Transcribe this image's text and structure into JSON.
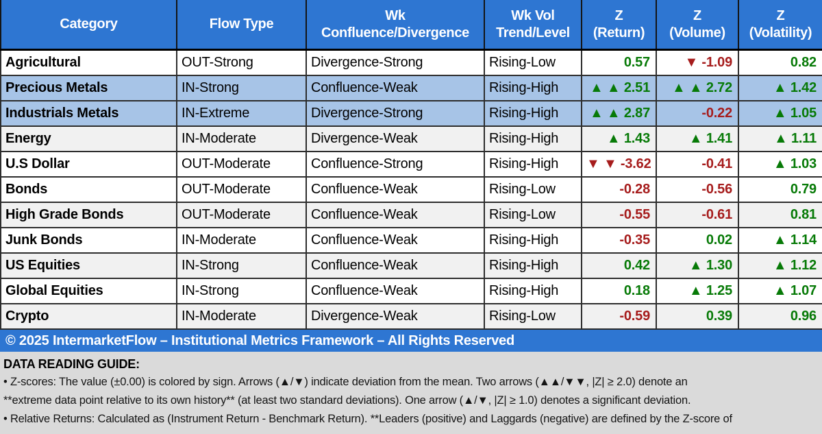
{
  "colors": {
    "header_bg": "#2E76D2",
    "highlight_bg": "#A7C4E7",
    "stripe_bg": "#F1F1F1",
    "positive_text": "#077A07",
    "negative_text": "#A61C1C",
    "footer_bg": "#2E76D2",
    "guide_bg": "#DADADA"
  },
  "table": {
    "header": [
      [
        "Category",
        ""
      ],
      [
        "Flow Type",
        ""
      ],
      [
        "Wk",
        "Confluence/Divergence"
      ],
      [
        "Wk Vol",
        "Trend/Level"
      ],
      [
        "Z",
        "(Return)"
      ],
      [
        "Z",
        "(Volume)"
      ],
      [
        "Z",
        "(Volatility)"
      ]
    ],
    "rows": [
      {
        "category": "Agricultural",
        "flow": "OUT-Strong",
        "confluence": "Divergence-Strong",
        "vol_trend": "Rising-Low",
        "bg": "white",
        "z": [
          {
            "text": "0.57",
            "tone": "pos"
          },
          {
            "text": "▼ -1.09",
            "tone": "neg"
          },
          {
            "text": "0.82",
            "tone": "pos"
          }
        ]
      },
      {
        "category": "Precious Metals",
        "flow": "IN-Strong",
        "confluence": "Confluence-Weak",
        "vol_trend": "Rising-High",
        "bg": "highlight",
        "z": [
          {
            "text": "▲ ▲ 2.51",
            "tone": "pos"
          },
          {
            "text": "▲ ▲ 2.72",
            "tone": "pos"
          },
          {
            "text": "▲ 1.42",
            "tone": "pos"
          }
        ]
      },
      {
        "category": "Industrials Metals",
        "flow": "IN-Extreme",
        "confluence": "Divergence-Strong",
        "vol_trend": "Rising-High",
        "bg": "highlight",
        "z": [
          {
            "text": "▲ ▲ 2.87",
            "tone": "pos"
          },
          {
            "text": "-0.22",
            "tone": "neg"
          },
          {
            "text": "▲ 1.05",
            "tone": "pos"
          }
        ]
      },
      {
        "category": "Energy",
        "flow": "IN-Moderate",
        "confluence": "Divergence-Weak",
        "vol_trend": "Rising-High",
        "bg": "stripe",
        "z": [
          {
            "text": "▲ 1.43",
            "tone": "pos"
          },
          {
            "text": "▲ 1.41",
            "tone": "pos"
          },
          {
            "text": "▲ 1.11",
            "tone": "pos"
          }
        ]
      },
      {
        "category": "U.S Dollar",
        "flow": "OUT-Moderate",
        "confluence": "Confluence-Strong",
        "vol_trend": "Rising-High",
        "bg": "white",
        "z": [
          {
            "text": "▼ ▼ -3.62",
            "tone": "neg"
          },
          {
            "text": "-0.41",
            "tone": "neg"
          },
          {
            "text": "▲ 1.03",
            "tone": "pos"
          }
        ]
      },
      {
        "category": "Bonds",
        "flow": "OUT-Moderate",
        "confluence": "Confluence-Weak",
        "vol_trend": "Rising-Low",
        "bg": "white",
        "z": [
          {
            "text": "-0.28",
            "tone": "neg"
          },
          {
            "text": "-0.56",
            "tone": "neg"
          },
          {
            "text": "0.79",
            "tone": "pos"
          }
        ]
      },
      {
        "category": "High Grade Bonds",
        "flow": "OUT-Moderate",
        "confluence": "Confluence-Weak",
        "vol_trend": "Rising-Low",
        "bg": "stripe",
        "z": [
          {
            "text": "-0.55",
            "tone": "neg"
          },
          {
            "text": "-0.61",
            "tone": "neg"
          },
          {
            "text": "0.81",
            "tone": "pos"
          }
        ]
      },
      {
        "category": "Junk Bonds",
        "flow": "IN-Moderate",
        "confluence": "Confluence-Weak",
        "vol_trend": "Rising-High",
        "bg": "white",
        "z": [
          {
            "text": "-0.35",
            "tone": "neg"
          },
          {
            "text": "0.02",
            "tone": "pos"
          },
          {
            "text": "▲ 1.14",
            "tone": "pos"
          }
        ]
      },
      {
        "category": "US Equities",
        "flow": "IN-Strong",
        "confluence": "Confluence-Weak",
        "vol_trend": "Rising-High",
        "bg": "stripe",
        "z": [
          {
            "text": "0.42",
            "tone": "pos"
          },
          {
            "text": "▲ 1.30",
            "tone": "pos"
          },
          {
            "text": "▲ 1.12",
            "tone": "pos"
          }
        ]
      },
      {
        "category": "Global Equities",
        "flow": "IN-Strong",
        "confluence": "Confluence-Weak",
        "vol_trend": "Rising-High",
        "bg": "white",
        "z": [
          {
            "text": "0.18",
            "tone": "pos"
          },
          {
            "text": "▲ 1.25",
            "tone": "pos"
          },
          {
            "text": "▲ 1.07",
            "tone": "pos"
          }
        ]
      },
      {
        "category": "Crypto",
        "flow": "IN-Moderate",
        "confluence": "Divergence-Weak",
        "vol_trend": "Rising-Low",
        "bg": "stripe",
        "z": [
          {
            "text": "-0.59",
            "tone": "neg"
          },
          {
            "text": "0.39",
            "tone": "pos"
          },
          {
            "text": "0.96",
            "tone": "pos"
          }
        ]
      }
    ]
  },
  "footer": {
    "text": "© 2025 IntermarketFlow – Institutional Metrics Framework – All Rights Reserved"
  },
  "guide": {
    "title": "DATA READING GUIDE:",
    "lines": [
      "• Z-scores: The value (±0.00) is colored by sign. Arrows (▲/▼) indicate deviation from the mean. Two arrows (▲▲/▼▼, |Z| ≥ 2.0) denote an",
      "**extreme data point relative to its own history** (at least two standard deviations). One arrow (▲/▼, |Z| ≥ 1.0) denotes a significant deviation.",
      "• Relative Returns: Calculated as (Instrument Return - Benchmark Return). **Leaders (positive) and Laggards (negative) are defined by the Z-score of"
    ]
  },
  "chart_data": {
    "type": "table",
    "columns": [
      "Category",
      "Flow Type",
      "Wk Confluence/Divergence",
      "Wk Vol Trend/Level",
      "Z (Return)",
      "Z (Volume)",
      "Z (Volatility)"
    ],
    "rows": [
      [
        "Agricultural",
        "OUT-Strong",
        "Divergence-Strong",
        "Rising-Low",
        0.57,
        -1.09,
        0.82
      ],
      [
        "Precious Metals",
        "IN-Strong",
        "Confluence-Weak",
        "Rising-High",
        2.51,
        2.72,
        1.42
      ],
      [
        "Industrials Metals",
        "IN-Extreme",
        "Divergence-Strong",
        "Rising-High",
        2.87,
        -0.22,
        1.05
      ],
      [
        "Energy",
        "IN-Moderate",
        "Divergence-Weak",
        "Rising-High",
        1.43,
        1.41,
        1.11
      ],
      [
        "U.S Dollar",
        "OUT-Moderate",
        "Confluence-Strong",
        "Rising-High",
        -3.62,
        -0.41,
        1.03
      ],
      [
        "Bonds",
        "OUT-Moderate",
        "Confluence-Weak",
        "Rising-Low",
        -0.28,
        -0.56,
        0.79
      ],
      [
        "High Grade Bonds",
        "OUT-Moderate",
        "Confluence-Weak",
        "Rising-Low",
        -0.55,
        -0.61,
        0.81
      ],
      [
        "Junk Bonds",
        "IN-Moderate",
        "Confluence-Weak",
        "Rising-High",
        -0.35,
        0.02,
        1.14
      ],
      [
        "US Equities",
        "IN-Strong",
        "Confluence-Weak",
        "Rising-High",
        0.42,
        1.3,
        1.12
      ],
      [
        "Global Equities",
        "IN-Strong",
        "Confluence-Weak",
        "Rising-High",
        0.18,
        1.25,
        1.07
      ],
      [
        "Crypto",
        "IN-Moderate",
        "Divergence-Weak",
        "Rising-Low",
        -0.59,
        0.39,
        0.96
      ]
    ],
    "highlighted_rows": [
      "Precious Metals",
      "Industrials Metals"
    ],
    "legend_note": "Green = positive Z, Red = negative Z, arrows mark |Z| ≥ 1.0 (single) and |Z| ≥ 2.0 (double)"
  }
}
